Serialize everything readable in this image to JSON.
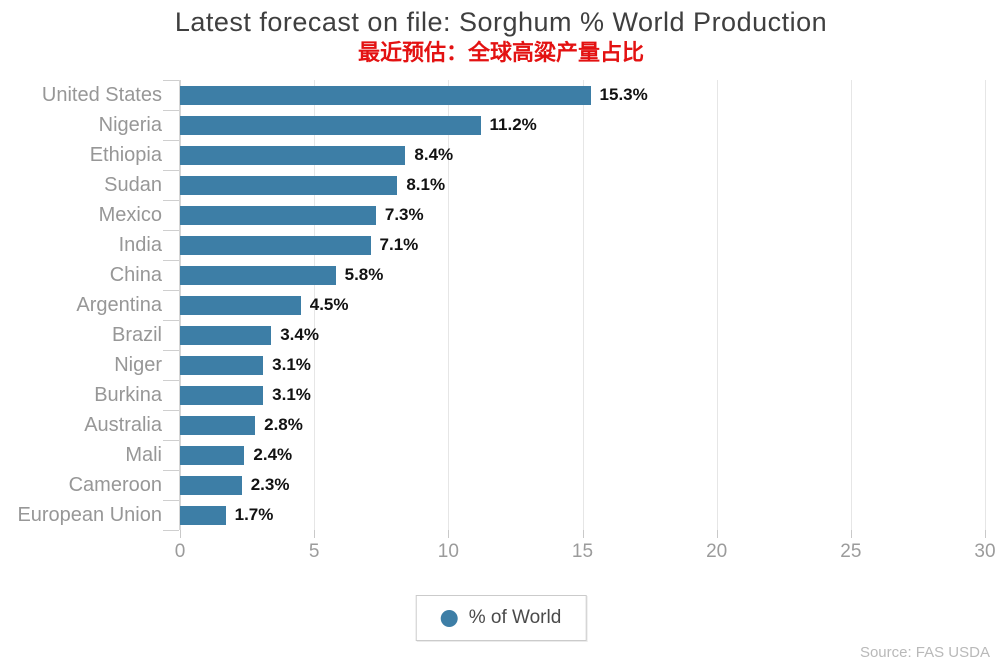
{
  "chart_data": {
    "type": "bar",
    "orientation": "horizontal",
    "title": "Latest forecast on file: Sorghum % World Production",
    "subtitle": "最近预估：全球高粱产量占比",
    "categories": [
      "United States",
      "Nigeria",
      "Ethiopia",
      "Sudan",
      "Mexico",
      "India",
      "China",
      "Argentina",
      "Brazil",
      "Niger",
      "Burkina",
      "Australia",
      "Mali",
      "Cameroon",
      "European Union"
    ],
    "values": [
      15.3,
      11.2,
      8.4,
      8.1,
      7.3,
      7.1,
      5.8,
      4.5,
      3.4,
      3.1,
      3.1,
      2.8,
      2.4,
      2.3,
      1.7
    ],
    "value_suffix": "%",
    "xlabel": "",
    "ylabel": "",
    "xlim": [
      0,
      30
    ],
    "xticks": [
      0,
      5,
      10,
      15,
      20,
      25,
      30
    ],
    "grid": true,
    "legend": [
      "% of World"
    ],
    "legend_position": "bottom-center",
    "bar_color": "#3d7ea6"
  },
  "footer": {
    "source": "Source: FAS USDA"
  },
  "colors": {
    "title": "#3f3f3f",
    "subtitle": "#e31212",
    "bar": "#3d7ea6",
    "category_label": "#979797",
    "value_label": "#121212",
    "tick_label": "#9b9b9b",
    "gridline": "#e6e6e6"
  }
}
